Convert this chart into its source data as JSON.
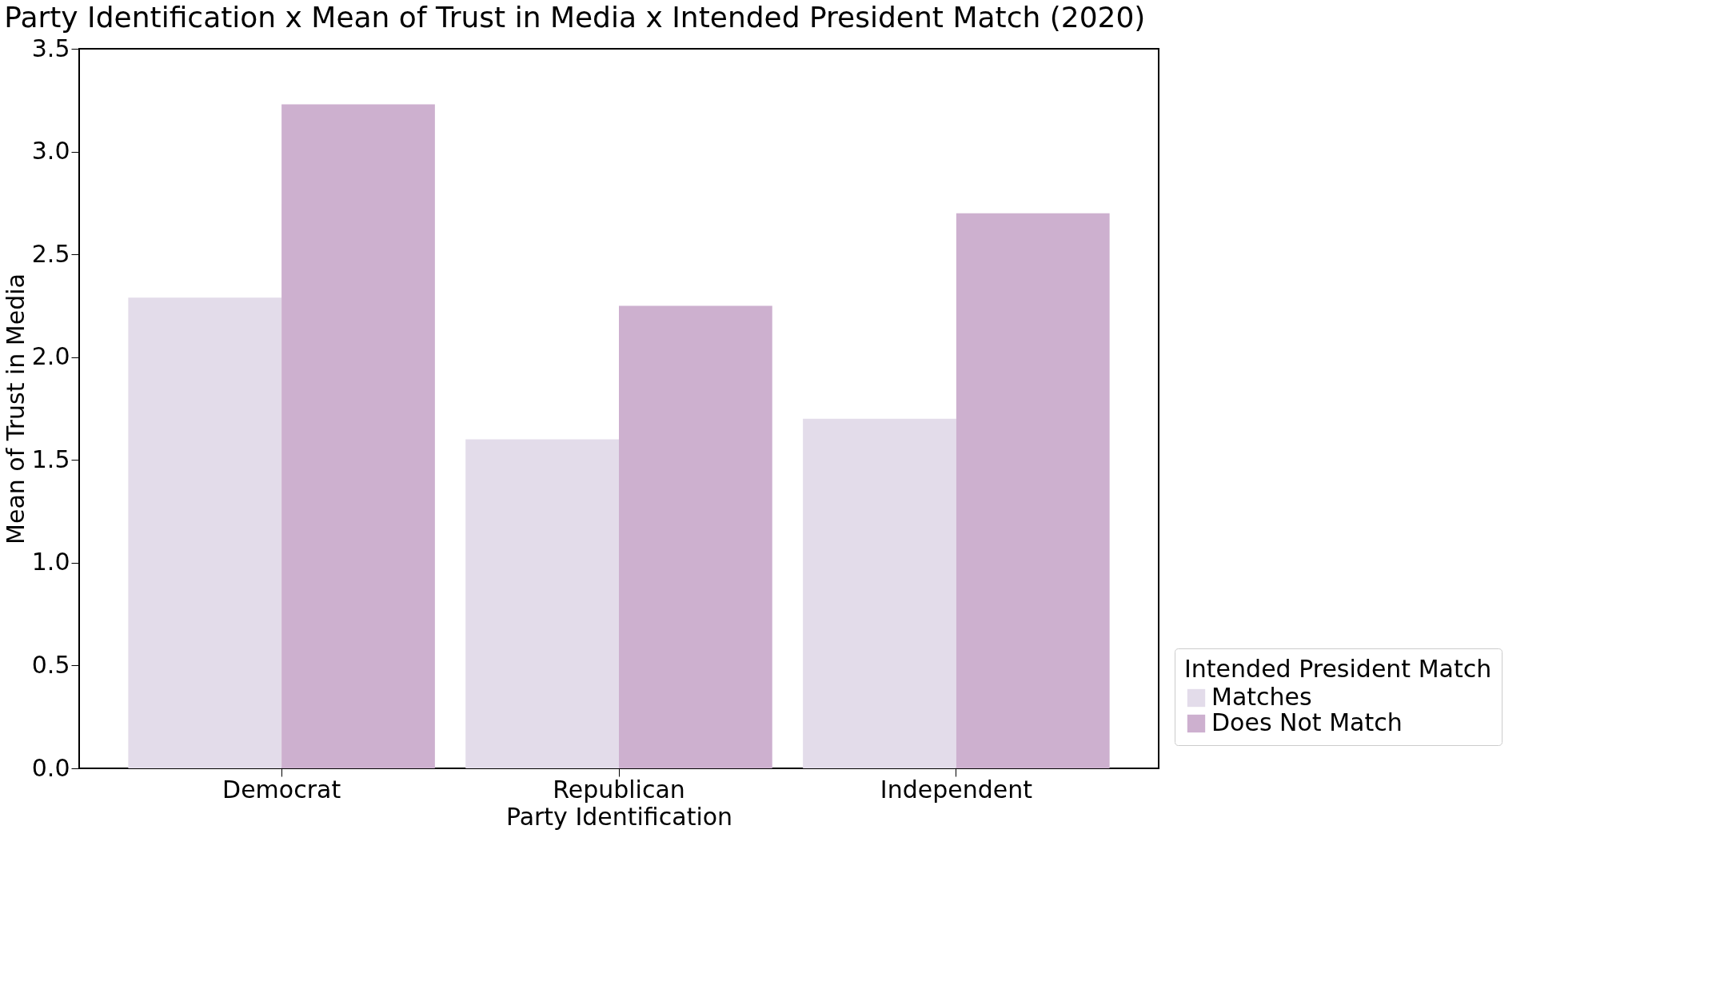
{
  "chart_data": {
    "type": "bar",
    "title": "Party Identification x Mean of Trust in Media x Intended President Match (2020)",
    "xlabel": "Party Identification",
    "ylabel": "Mean of Trust in Media",
    "legend_title": "Intended President Match",
    "categories": [
      "Democrat",
      "Republican",
      "Independent"
    ],
    "series": [
      {
        "name": "Matches",
        "color": "#e3dcea",
        "values": [
          2.29,
          1.6,
          1.7
        ]
      },
      {
        "name": "Does Not Match",
        "color": "#cdb0cf",
        "values": [
          3.23,
          2.25,
          2.7
        ]
      }
    ],
    "ylim": [
      0,
      3.5
    ],
    "yticks": [
      {
        "value": 0,
        "label": "0.0"
      },
      {
        "value": 0.5,
        "label": "0.5"
      },
      {
        "value": 1,
        "label": "1.0"
      },
      {
        "value": 1.5,
        "label": "1.5"
      },
      {
        "value": 2,
        "label": "2.0"
      },
      {
        "value": 2.5,
        "label": "2.5"
      },
      {
        "value": 3,
        "label": "3.0"
      },
      {
        "value": 3.5,
        "label": "3.5"
      }
    ],
    "grid": false,
    "legend": "bottom right"
  }
}
